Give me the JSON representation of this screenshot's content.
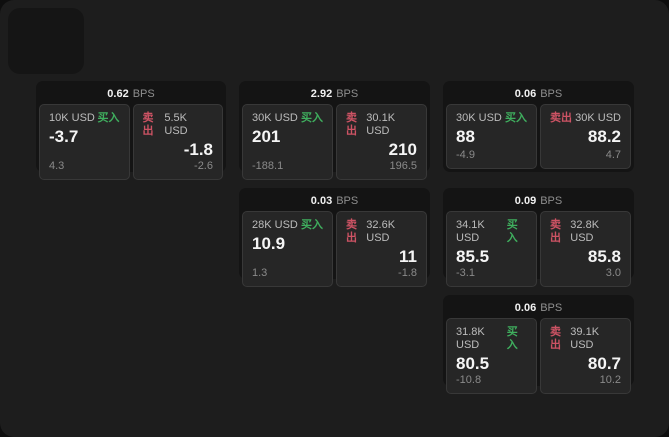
{
  "labels": {
    "buy": "买入",
    "sell": "卖出",
    "bps_unit": "BPS"
  },
  "colors": {
    "outer_background": "#0e0e0e",
    "window_background": "#1d1d1d",
    "card_background": "#141414",
    "panel_background": "#262626",
    "panel_border": "#383838",
    "buy_green": "#3fae5e",
    "sell_red": "#cd5364",
    "text_primary": "#f2f2f2",
    "text_secondary": "#bcbcbc",
    "text_dim": "#8a8a8a"
  },
  "cards": [
    {
      "bps": "0.62",
      "row": 1,
      "col": 1,
      "buy": {
        "amount": "10K USD",
        "price": "-3.7",
        "change": "4.3"
      },
      "sell": {
        "amount": "5.5K USD",
        "price": "-1.8",
        "change": "-2.6"
      }
    },
    {
      "bps": "2.92",
      "row": 1,
      "col": 2,
      "buy": {
        "amount": "30K USD",
        "price": "201",
        "change": "-188.1"
      },
      "sell": {
        "amount": "30.1K USD",
        "price": "210",
        "change": "196.5"
      }
    },
    {
      "bps": "0.06",
      "row": 1,
      "col": 3,
      "buy": {
        "amount": "30K USD",
        "price": "88",
        "change": "-4.9"
      },
      "sell": {
        "amount": "30K USD",
        "price": "88.2",
        "change": "4.7"
      }
    },
    {
      "bps": "0.03",
      "row": 2,
      "col": 2,
      "buy": {
        "amount": "28K USD",
        "price": "10.9",
        "change": "1.3"
      },
      "sell": {
        "amount": "32.6K USD",
        "price": "11",
        "change": "-1.8"
      }
    },
    {
      "bps": "0.09",
      "row": 2,
      "col": 3,
      "buy": {
        "amount": "34.1K USD",
        "price": "85.5",
        "change": "-3.1"
      },
      "sell": {
        "amount": "32.8K USD",
        "price": "85.8",
        "change": "3.0"
      }
    },
    {
      "bps": "0.06",
      "row": 3,
      "col": 3,
      "buy": {
        "amount": "31.8K USD",
        "price": "80.5",
        "change": "-10.8"
      },
      "sell": {
        "amount": "39.1K USD",
        "price": "80.7",
        "change": "10.2"
      }
    }
  ]
}
